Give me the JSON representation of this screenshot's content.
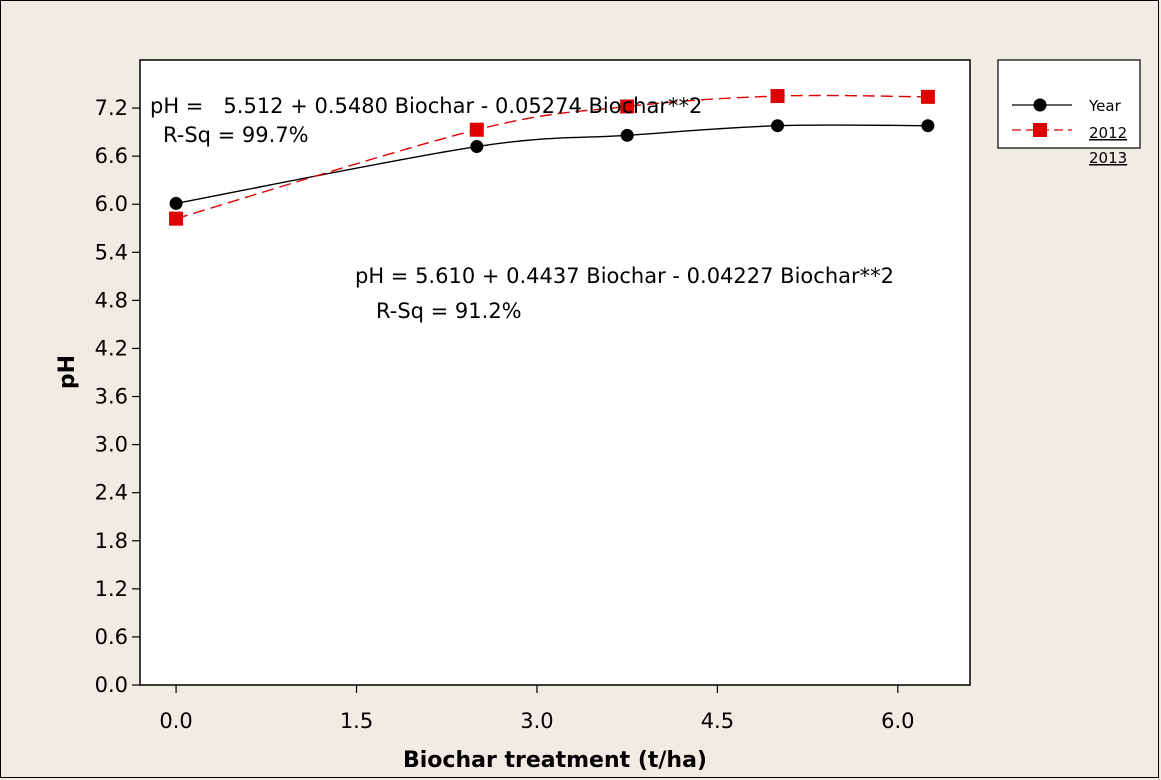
{
  "chart_data": {
    "type": "line",
    "xlabel": "Biochar treatment (t/ha)",
    "ylabel": "pH",
    "xlim": [
      -0.3,
      6.6
    ],
    "ylim": [
      0.0,
      7.8
    ],
    "xticks": [
      0.0,
      1.5,
      3.0,
      4.5,
      6.0
    ],
    "xtick_labels": [
      "0.0",
      "1.5",
      "3.0",
      "4.5",
      "6.0"
    ],
    "yticks": [
      0.0,
      0.6,
      1.2,
      1.8,
      2.4,
      3.0,
      3.6,
      4.2,
      4.8,
      5.4,
      6.0,
      6.6,
      7.2
    ],
    "ytick_labels": [
      "0.0",
      "0.6",
      "1.2",
      "1.8",
      "2.4",
      "3.0",
      "3.6",
      "4.2",
      "4.8",
      "5.4",
      "6.0",
      "6.6",
      "7.2"
    ],
    "grid": false,
    "legend_position": "right",
    "legend": {
      "title": "Year",
      "entries": [
        "2012",
        "2013"
      ]
    },
    "series": [
      {
        "name": "2012",
        "color": "#000000",
        "marker": "circle",
        "line_style": "solid",
        "x": [
          0.0,
          2.5,
          3.75,
          5.0,
          6.25
        ],
        "y": [
          6.01,
          6.72,
          6.86,
          6.98,
          6.98
        ],
        "fit": {
          "a": 5.61,
          "b": 0.4437,
          "c": -0.04227
        }
      },
      {
        "name": "2013",
        "color": "#dd0000",
        "marker": "square",
        "line_style": "dashed",
        "x": [
          0.0,
          2.5,
          3.75,
          5.0,
          6.25
        ],
        "y": [
          5.82,
          6.93,
          7.22,
          7.35,
          7.34
        ],
        "fit": {
          "a": 5.512,
          "b": 0.548,
          "c": -0.05274
        }
      }
    ],
    "annotations": [
      {
        "line1": "pH =   5.512 + 0.5480 Biochar - 0.05274 Biochar**2",
        "line2": "R-Sq = 99.7%"
      },
      {
        "line1": "pH = 5.610 + 0.4437 Biochar - 0.04227 Biochar**2",
        "line2": "R-Sq = 91.2%"
      }
    ]
  }
}
